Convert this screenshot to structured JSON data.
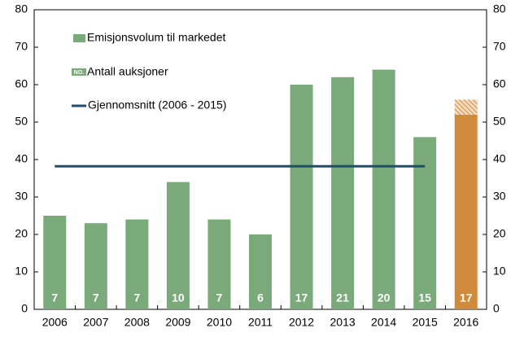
{
  "chart_data": {
    "type": "bar",
    "categories": [
      "2006",
      "2007",
      "2008",
      "2009",
      "2010",
      "2011",
      "2012",
      "2013",
      "2014",
      "2015",
      "2016"
    ],
    "series": [
      {
        "name": "Emisjonsvolum til markedet",
        "color": "#7aaa7a",
        "values": [
          25,
          23,
          24,
          34,
          24,
          20,
          60,
          62,
          64,
          46,
          52
        ],
        "bar_colors": [
          "#7aaa7a",
          "#7aaa7a",
          "#7aaa7a",
          "#7aaa7a",
          "#7aaa7a",
          "#7aaa7a",
          "#7aaa7a",
          "#7aaa7a",
          "#7aaa7a",
          "#7aaa7a",
          "#d08a3c"
        ],
        "hatched_values": [
          null,
          null,
          null,
          null,
          null,
          null,
          null,
          null,
          null,
          null,
          4
        ]
      },
      {
        "name": "Antall auksjoner",
        "icon_label": "NO.",
        "color": "#ffffff",
        "values": [
          7,
          7,
          7,
          10,
          7,
          6,
          17,
          21,
          20,
          15,
          17
        ]
      },
      {
        "name": "Gjennomsnitt (2006 - 2015)",
        "type": "line",
        "color": "#1f4e6e",
        "values": [
          38.2,
          38.2,
          38.2,
          38.2,
          38.2,
          38.2,
          38.2,
          38.2,
          38.2,
          38.2,
          null
        ]
      }
    ],
    "ylim": [
      0,
      80
    ],
    "yticks": [
      0,
      10,
      20,
      30,
      40,
      50,
      60,
      70,
      80
    ],
    "y2lim": [
      0,
      80
    ],
    "y2ticks": [
      0,
      10,
      20,
      30,
      40,
      50,
      60,
      70,
      80
    ],
    "grid": false
  }
}
